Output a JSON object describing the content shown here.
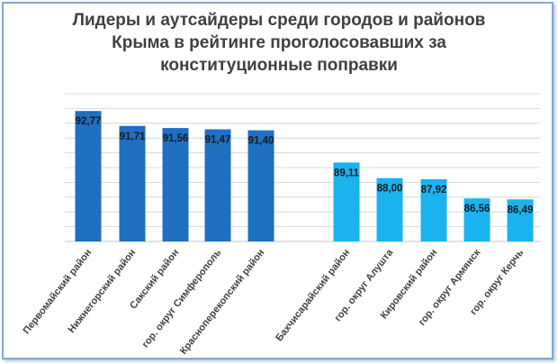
{
  "chart_data": {
    "type": "bar",
    "title_lines": [
      "Лидеры и аутсайдеры среди городов и районов",
      "Крыма в рейтинге проголосовавших за",
      "конституционные поправки"
    ],
    "categories": [
      "Первомайский район",
      "Нижнегорский район",
      "Сакский район",
      "гор. округ Симферополь",
      "Красноперекопский район",
      "Бахчисарайский район",
      "гор. округ Алушта",
      "Кировский район",
      "гор. округ Армянск",
      "гор. округ Керчь"
    ],
    "values": [
      92.77,
      91.71,
      91.56,
      91.47,
      91.4,
      89.11,
      88.0,
      87.92,
      86.56,
      86.49
    ],
    "value_labels": [
      "92,77",
      "91,71",
      "91,56",
      "91,47",
      "91,40",
      "89,11",
      "88,00",
      "87,92",
      "86,56",
      "86,49"
    ],
    "groups": [
      "leaders",
      "leaders",
      "leaders",
      "leaders",
      "leaders",
      "outsiders",
      "outsiders",
      "outsiders",
      "outsiders",
      "outsiders"
    ],
    "colors": {
      "leaders": "#1f6fc2",
      "outsiders": "#1ab3f0",
      "grid": "#d0d0d0",
      "frame": "#7fa7d6"
    },
    "ylim": [
      83.5,
      94
    ],
    "grid": true,
    "legend": "none"
  }
}
